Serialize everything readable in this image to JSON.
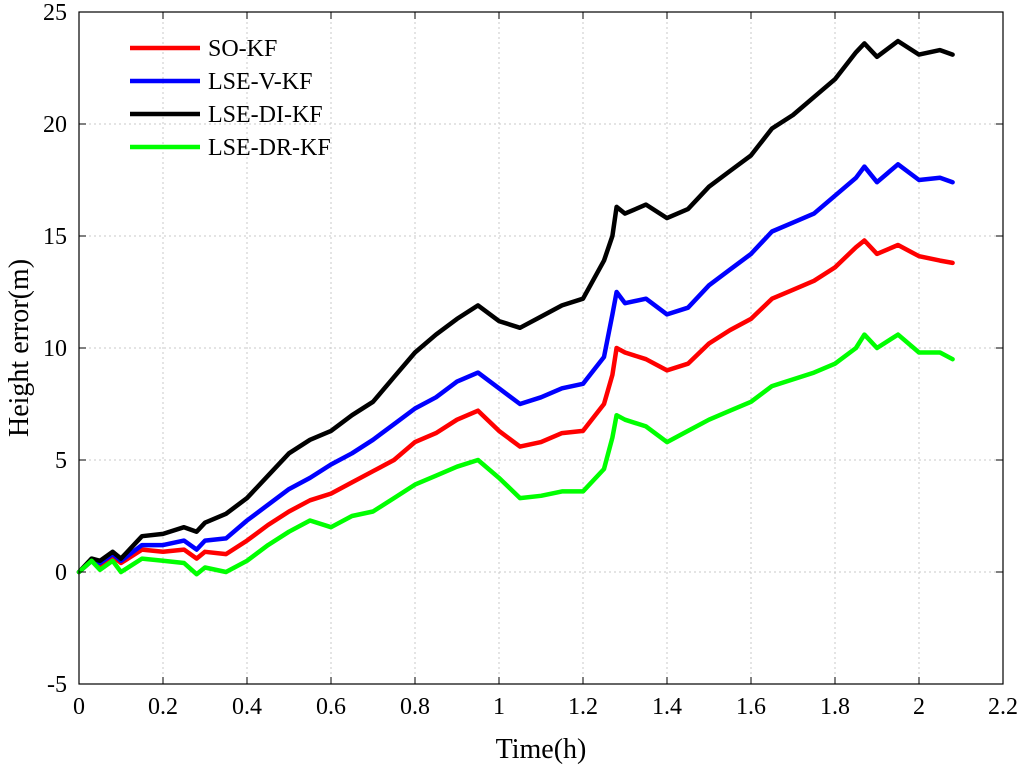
{
  "chart_data": {
    "type": "line",
    "title": "",
    "xlabel": "Time(h)",
    "ylabel": "Height error(m)",
    "xlim": [
      0,
      2.2
    ],
    "ylim": [
      -5,
      25
    ],
    "xticks": [
      0,
      0.2,
      0.4,
      0.6,
      0.8,
      1,
      1.2,
      1.4,
      1.6,
      1.8,
      2,
      2.2
    ],
    "xtick_labels": [
      "0",
      "0.2",
      "0.4",
      "0.6",
      "0.8",
      "1",
      "1.2",
      "1.4",
      "1.6",
      "1.8",
      "2",
      "2.2"
    ],
    "yticks": [
      -5,
      0,
      5,
      10,
      15,
      20,
      25
    ],
    "ytick_labels": [
      "-5",
      "0",
      "5",
      "10",
      "15",
      "20",
      "25"
    ],
    "grid": true,
    "legend_position": "top-left",
    "series": [
      {
        "name": "SO-KF",
        "color": "#ff0000",
        "x": [
          0,
          0.03,
          0.05,
          0.08,
          0.1,
          0.15,
          0.2,
          0.25,
          0.28,
          0.3,
          0.35,
          0.4,
          0.45,
          0.5,
          0.55,
          0.6,
          0.65,
          0.7,
          0.75,
          0.8,
          0.85,
          0.9,
          0.95,
          1.0,
          1.05,
          1.1,
          1.15,
          1.2,
          1.25,
          1.27,
          1.28,
          1.3,
          1.35,
          1.4,
          1.45,
          1.5,
          1.55,
          1.6,
          1.65,
          1.7,
          1.75,
          1.8,
          1.85,
          1.87,
          1.9,
          1.95,
          2.0,
          2.05,
          2.08
        ],
        "y": [
          0,
          0.5,
          0.3,
          0.7,
          0.4,
          1.0,
          0.9,
          1.0,
          0.6,
          0.9,
          0.8,
          1.4,
          2.1,
          2.7,
          3.2,
          3.5,
          4.0,
          4.5,
          5.0,
          5.8,
          6.2,
          6.8,
          7.2,
          6.3,
          5.6,
          5.8,
          6.2,
          6.3,
          7.5,
          8.8,
          10.0,
          9.8,
          9.5,
          9.0,
          9.3,
          10.2,
          10.8,
          11.3,
          12.2,
          12.6,
          13.0,
          13.6,
          14.5,
          14.8,
          14.2,
          14.6,
          14.1,
          13.9,
          13.8
        ]
      },
      {
        "name": "LSE-V-KF",
        "color": "#0000ff",
        "x": [
          0,
          0.03,
          0.05,
          0.08,
          0.1,
          0.15,
          0.2,
          0.25,
          0.28,
          0.3,
          0.35,
          0.4,
          0.45,
          0.5,
          0.55,
          0.6,
          0.65,
          0.7,
          0.75,
          0.8,
          0.85,
          0.9,
          0.95,
          1.0,
          1.05,
          1.1,
          1.15,
          1.2,
          1.25,
          1.27,
          1.28,
          1.3,
          1.35,
          1.4,
          1.45,
          1.5,
          1.55,
          1.6,
          1.65,
          1.7,
          1.75,
          1.8,
          1.85,
          1.87,
          1.9,
          1.95,
          2.0,
          2.05,
          2.08
        ],
        "y": [
          0,
          0.5,
          0.4,
          0.8,
          0.5,
          1.2,
          1.2,
          1.4,
          1.0,
          1.4,
          1.5,
          2.3,
          3.0,
          3.7,
          4.2,
          4.8,
          5.3,
          5.9,
          6.6,
          7.3,
          7.8,
          8.5,
          8.9,
          8.2,
          7.5,
          7.8,
          8.2,
          8.4,
          9.6,
          11.5,
          12.5,
          12.0,
          12.2,
          11.5,
          11.8,
          12.8,
          13.5,
          14.2,
          15.2,
          15.6,
          16.0,
          16.8,
          17.6,
          18.1,
          17.4,
          18.2,
          17.5,
          17.6,
          17.4
        ]
      },
      {
        "name": "LSE-DI-KF",
        "color": "#000000",
        "x": [
          0,
          0.03,
          0.05,
          0.08,
          0.1,
          0.15,
          0.2,
          0.25,
          0.28,
          0.3,
          0.35,
          0.4,
          0.45,
          0.5,
          0.55,
          0.6,
          0.65,
          0.7,
          0.75,
          0.8,
          0.85,
          0.9,
          0.95,
          1.0,
          1.05,
          1.1,
          1.15,
          1.2,
          1.25,
          1.27,
          1.28,
          1.3,
          1.35,
          1.4,
          1.45,
          1.5,
          1.55,
          1.6,
          1.65,
          1.7,
          1.75,
          1.8,
          1.85,
          1.87,
          1.9,
          1.95,
          2.0,
          2.05,
          2.08
        ],
        "y": [
          0,
          0.6,
          0.5,
          0.9,
          0.6,
          1.6,
          1.7,
          2.0,
          1.8,
          2.2,
          2.6,
          3.3,
          4.3,
          5.3,
          5.9,
          6.3,
          7.0,
          7.6,
          8.7,
          9.8,
          10.6,
          11.3,
          11.9,
          11.2,
          10.9,
          11.4,
          11.9,
          12.2,
          13.9,
          15.0,
          16.3,
          16.0,
          16.4,
          15.8,
          16.2,
          17.2,
          17.9,
          18.6,
          19.8,
          20.4,
          21.2,
          22.0,
          23.2,
          23.6,
          23.0,
          23.7,
          23.1,
          23.3,
          23.1
        ]
      },
      {
        "name": "LSE-DR-KF",
        "color": "#00ff00",
        "x": [
          0,
          0.03,
          0.05,
          0.08,
          0.1,
          0.15,
          0.2,
          0.25,
          0.28,
          0.3,
          0.35,
          0.4,
          0.45,
          0.5,
          0.55,
          0.6,
          0.65,
          0.7,
          0.75,
          0.8,
          0.85,
          0.9,
          0.95,
          1.0,
          1.05,
          1.1,
          1.15,
          1.2,
          1.25,
          1.27,
          1.28,
          1.3,
          1.35,
          1.4,
          1.45,
          1.5,
          1.55,
          1.6,
          1.65,
          1.7,
          1.75,
          1.8,
          1.85,
          1.87,
          1.9,
          1.95,
          2.0,
          2.05,
          2.08
        ],
        "y": [
          0,
          0.5,
          0.1,
          0.5,
          0.0,
          0.6,
          0.5,
          0.4,
          -0.1,
          0.2,
          0.0,
          0.5,
          1.2,
          1.8,
          2.3,
          2.0,
          2.5,
          2.7,
          3.3,
          3.9,
          4.3,
          4.7,
          5.0,
          4.2,
          3.3,
          3.4,
          3.6,
          3.6,
          4.6,
          6.0,
          7.0,
          6.8,
          6.5,
          5.8,
          6.3,
          6.8,
          7.2,
          7.6,
          8.3,
          8.6,
          8.9,
          9.3,
          10.0,
          10.6,
          10.0,
          10.6,
          9.8,
          9.8,
          9.5
        ]
      }
    ]
  }
}
